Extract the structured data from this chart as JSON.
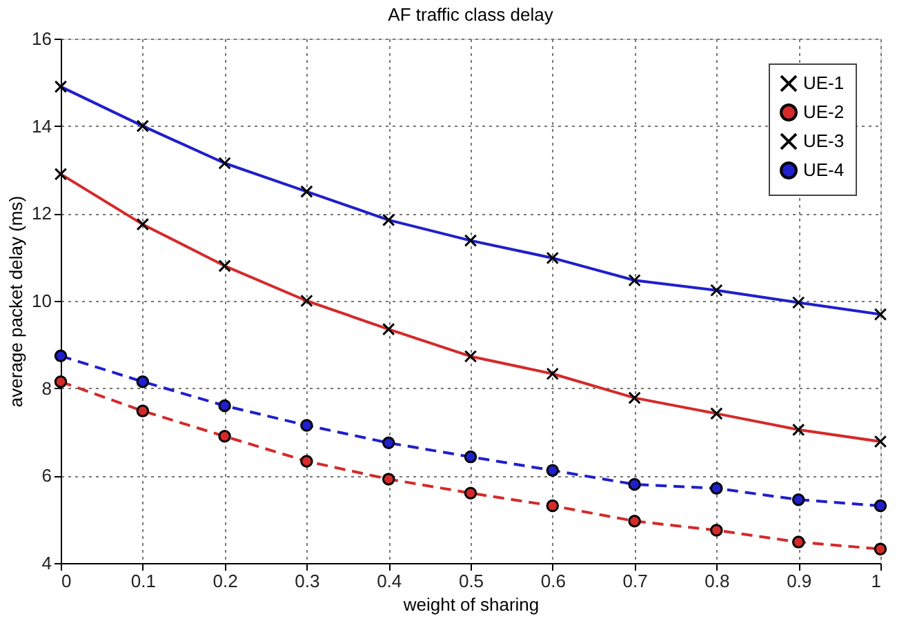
{
  "chart_data": {
    "type": "line",
    "title": "AF traffic class delay",
    "xlabel": "weight of sharing",
    "ylabel": "average packet delay (ms)",
    "x": [
      0,
      0.1,
      0.2,
      0.3,
      0.4,
      0.5,
      0.6,
      0.7,
      0.8,
      0.9,
      1
    ],
    "series": [
      {
        "name": "UE-1",
        "color": "#d42a2a",
        "marker": "cross",
        "line_style": "solid",
        "values": [
          12.9,
          11.75,
          10.8,
          10.0,
          9.35,
          8.73,
          8.33,
          7.78,
          7.42,
          7.05,
          6.78
        ]
      },
      {
        "name": "UE-2",
        "color": "#d42a2a",
        "marker": "circle",
        "line_style": "dashed",
        "values": [
          8.15,
          7.48,
          6.9,
          6.33,
          5.92,
          5.6,
          5.31,
          4.96,
          4.75,
          4.48,
          4.32
        ]
      },
      {
        "name": "UE-3",
        "color": "#1f1fcc",
        "marker": "cross",
        "line_style": "solid",
        "values": [
          14.9,
          14.0,
          13.15,
          12.5,
          11.85,
          11.38,
          10.98,
          10.47,
          10.24,
          9.96,
          9.69
        ]
      },
      {
        "name": "UE-4",
        "color": "#1f1fcc",
        "marker": "circle",
        "line_style": "dashed",
        "values": [
          8.74,
          8.15,
          7.6,
          7.15,
          6.75,
          6.43,
          6.12,
          5.8,
          5.71,
          5.45,
          5.31
        ]
      }
    ],
    "xlim": [
      0,
      1
    ],
    "xticks": [
      0,
      0.1,
      0.2,
      0.3,
      0.4,
      0.5,
      0.6,
      0.7,
      0.8,
      0.9,
      1
    ],
    "ylim": [
      4,
      16
    ],
    "yticks": [
      4,
      6,
      8,
      10,
      12,
      14,
      16
    ],
    "grid": true,
    "legend": "top right"
  }
}
